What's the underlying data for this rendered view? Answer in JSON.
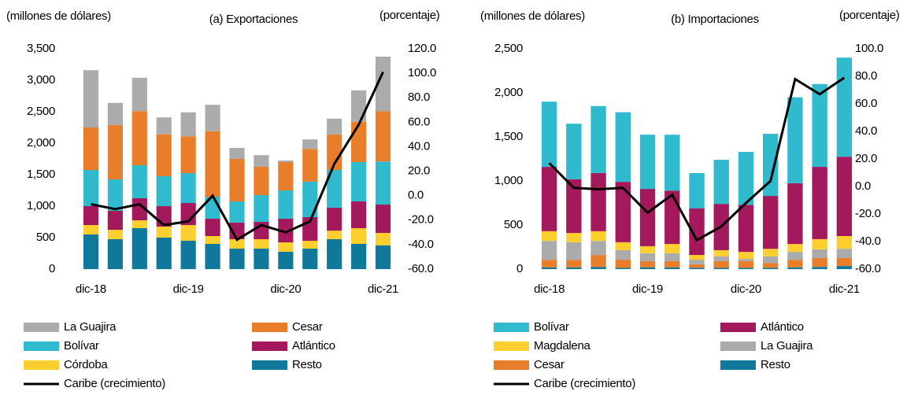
{
  "chart_data": [
    {
      "type": "stacked_bar_line",
      "title": "(a) Exportaciones",
      "y_label": "(millones de dólares)",
      "y2_label": "(porcentaje)",
      "categories": [
        "dic-18",
        null,
        null,
        null,
        "dic-19",
        null,
        null,
        null,
        "dic-20",
        null,
        null,
        null,
        "dic-21"
      ],
      "series": [
        {
          "name": "La Guajira",
          "color": "#ababab",
          "values": [
            910,
            350,
            530,
            270,
            380,
            420,
            175,
            185,
            25,
            150,
            250,
            500,
            865
          ]
        },
        {
          "name": "Cesar",
          "color": "#e87d2a",
          "values": [
            675,
            865,
            860,
            665,
            585,
            1040,
            675,
            450,
            450,
            520,
            565,
            640,
            800
          ]
        },
        {
          "name": "Bolívar",
          "color": "#30bacd",
          "values": [
            575,
            500,
            525,
            475,
            475,
            350,
            335,
            425,
            450,
            565,
            600,
            625,
            685
          ]
        },
        {
          "name": "Atlántico",
          "color": "#a3195b",
          "values": [
            300,
            300,
            350,
            325,
            350,
            275,
            265,
            275,
            375,
            375,
            365,
            425,
            450
          ]
        },
        {
          "name": "Córdoba",
          "color": "#fccf2e",
          "values": [
            150,
            150,
            125,
            175,
            250,
            125,
            150,
            150,
            150,
            125,
            135,
            250,
            200
          ]
        },
        {
          "name": "Resto",
          "color": "#0f789b",
          "values": [
            550,
            475,
            650,
            500,
            450,
            400,
            325,
            325,
            275,
            325,
            475,
            400,
            375
          ]
        },
        {
          "name": "Caribe (crecimiento)",
          "color": "#000000",
          "type": "line",
          "axis": "y2",
          "values": [
            -7,
            -11,
            -7,
            -24,
            -21,
            0,
            -36,
            -24,
            -30,
            -21,
            26,
            58,
            101
          ]
        }
      ],
      "ylim": [
        0,
        3500
      ],
      "yticks": [
        0,
        500,
        {
          "value": 1000,
          "label": "1,000"
        },
        {
          "value": 1500,
          "label": "1,500"
        },
        {
          "value": 2000,
          "label": "2,000"
        },
        {
          "value": 2500,
          "label": "2,500"
        },
        {
          "value": 3000,
          "label": "3,000"
        },
        {
          "value": 3500,
          "label": "3,500"
        }
      ],
      "y2lim": [
        -60,
        120
      ],
      "y2ticks": [
        {
          "value": -60,
          "label": "-60.0"
        },
        {
          "value": -40,
          "label": "-40.0"
        },
        {
          "value": -20,
          "label": "-20.0"
        },
        {
          "value": 0,
          "label": "0.0"
        },
        {
          "value": 20,
          "label": "20.0"
        },
        {
          "value": 40,
          "label": "40.0"
        },
        {
          "value": 60,
          "label": "60.0"
        },
        {
          "value": 80,
          "label": "80.0"
        },
        {
          "value": 100,
          "label": "100.0"
        },
        {
          "value": 120,
          "label": "120.0"
        }
      ]
    },
    {
      "type": "stacked_bar_line",
      "title": "(b) Importaciones",
      "y_label": "(millones de dólares)",
      "y2_label": "(porcentaje)",
      "categories": [
        "dic-18",
        null,
        null,
        null,
        "dic-19",
        null,
        null,
        null,
        "dic-20",
        null,
        null,
        null,
        "dic-21"
      ],
      "series": [
        {
          "name": "Bolívar",
          "color": "#30bacd",
          "values": [
            740,
            630,
            760,
            790,
            615,
            635,
            400,
            500,
            600,
            705,
            975,
            940,
            1125
          ]
        },
        {
          "name": "Atlántico",
          "color": "#a3195b",
          "values": [
            730,
            610,
            660,
            685,
            650,
            605,
            530,
            525,
            535,
            600,
            690,
            820,
            900
          ]
        },
        {
          "name": "Magdalena",
          "color": "#fccf2e",
          "values": [
            110,
            105,
            110,
            90,
            80,
            105,
            53,
            70,
            80,
            85,
            90,
            115,
            145
          ]
        },
        {
          "name": "La Guajira",
          "color": "#ababab",
          "values": [
            215,
            200,
            160,
            108,
            90,
            90,
            52,
            55,
            25,
            75,
            90,
            100,
            105
          ]
        },
        {
          "name": "Cesar",
          "color": "#e87d2a",
          "values": [
            85,
            85,
            135,
            92,
            70,
            70,
            40,
            75,
            75,
            55,
            85,
            100,
            90
          ]
        },
        {
          "name": "Resto",
          "color": "#0f789b",
          "values": [
            20,
            20,
            25,
            15,
            20,
            20,
            15,
            15,
            15,
            15,
            20,
            25,
            35
          ]
        },
        {
          "name": "Caribe (crecimiento)",
          "color": "#000000",
          "type": "line",
          "axis": "y2",
          "values": [
            17,
            -1,
            -2,
            -1,
            -19,
            -6,
            -39,
            -29,
            -12,
            4,
            78,
            67,
            79
          ]
        }
      ],
      "ylim": [
        0,
        2500
      ],
      "yticks": [
        0,
        500,
        {
          "value": 1000,
          "label": "1,000"
        },
        {
          "value": 1500,
          "label": "1,500"
        },
        {
          "value": 2000,
          "label": "2,000"
        },
        {
          "value": 2500,
          "label": "2,500"
        }
      ],
      "y2lim": [
        -60,
        100
      ],
      "y2ticks": [
        {
          "value": -60,
          "label": "-60.0"
        },
        {
          "value": -40,
          "label": "-40.0"
        },
        {
          "value": -20,
          "label": "-20.0"
        },
        {
          "value": 0,
          "label": "0.0"
        },
        {
          "value": 20,
          "label": "20.0"
        },
        {
          "value": 40,
          "label": "40.0"
        },
        {
          "value": 60,
          "label": "60.0"
        },
        {
          "value": 80,
          "label": "80.0"
        },
        {
          "value": 100,
          "label": "100.0"
        }
      ]
    }
  ]
}
